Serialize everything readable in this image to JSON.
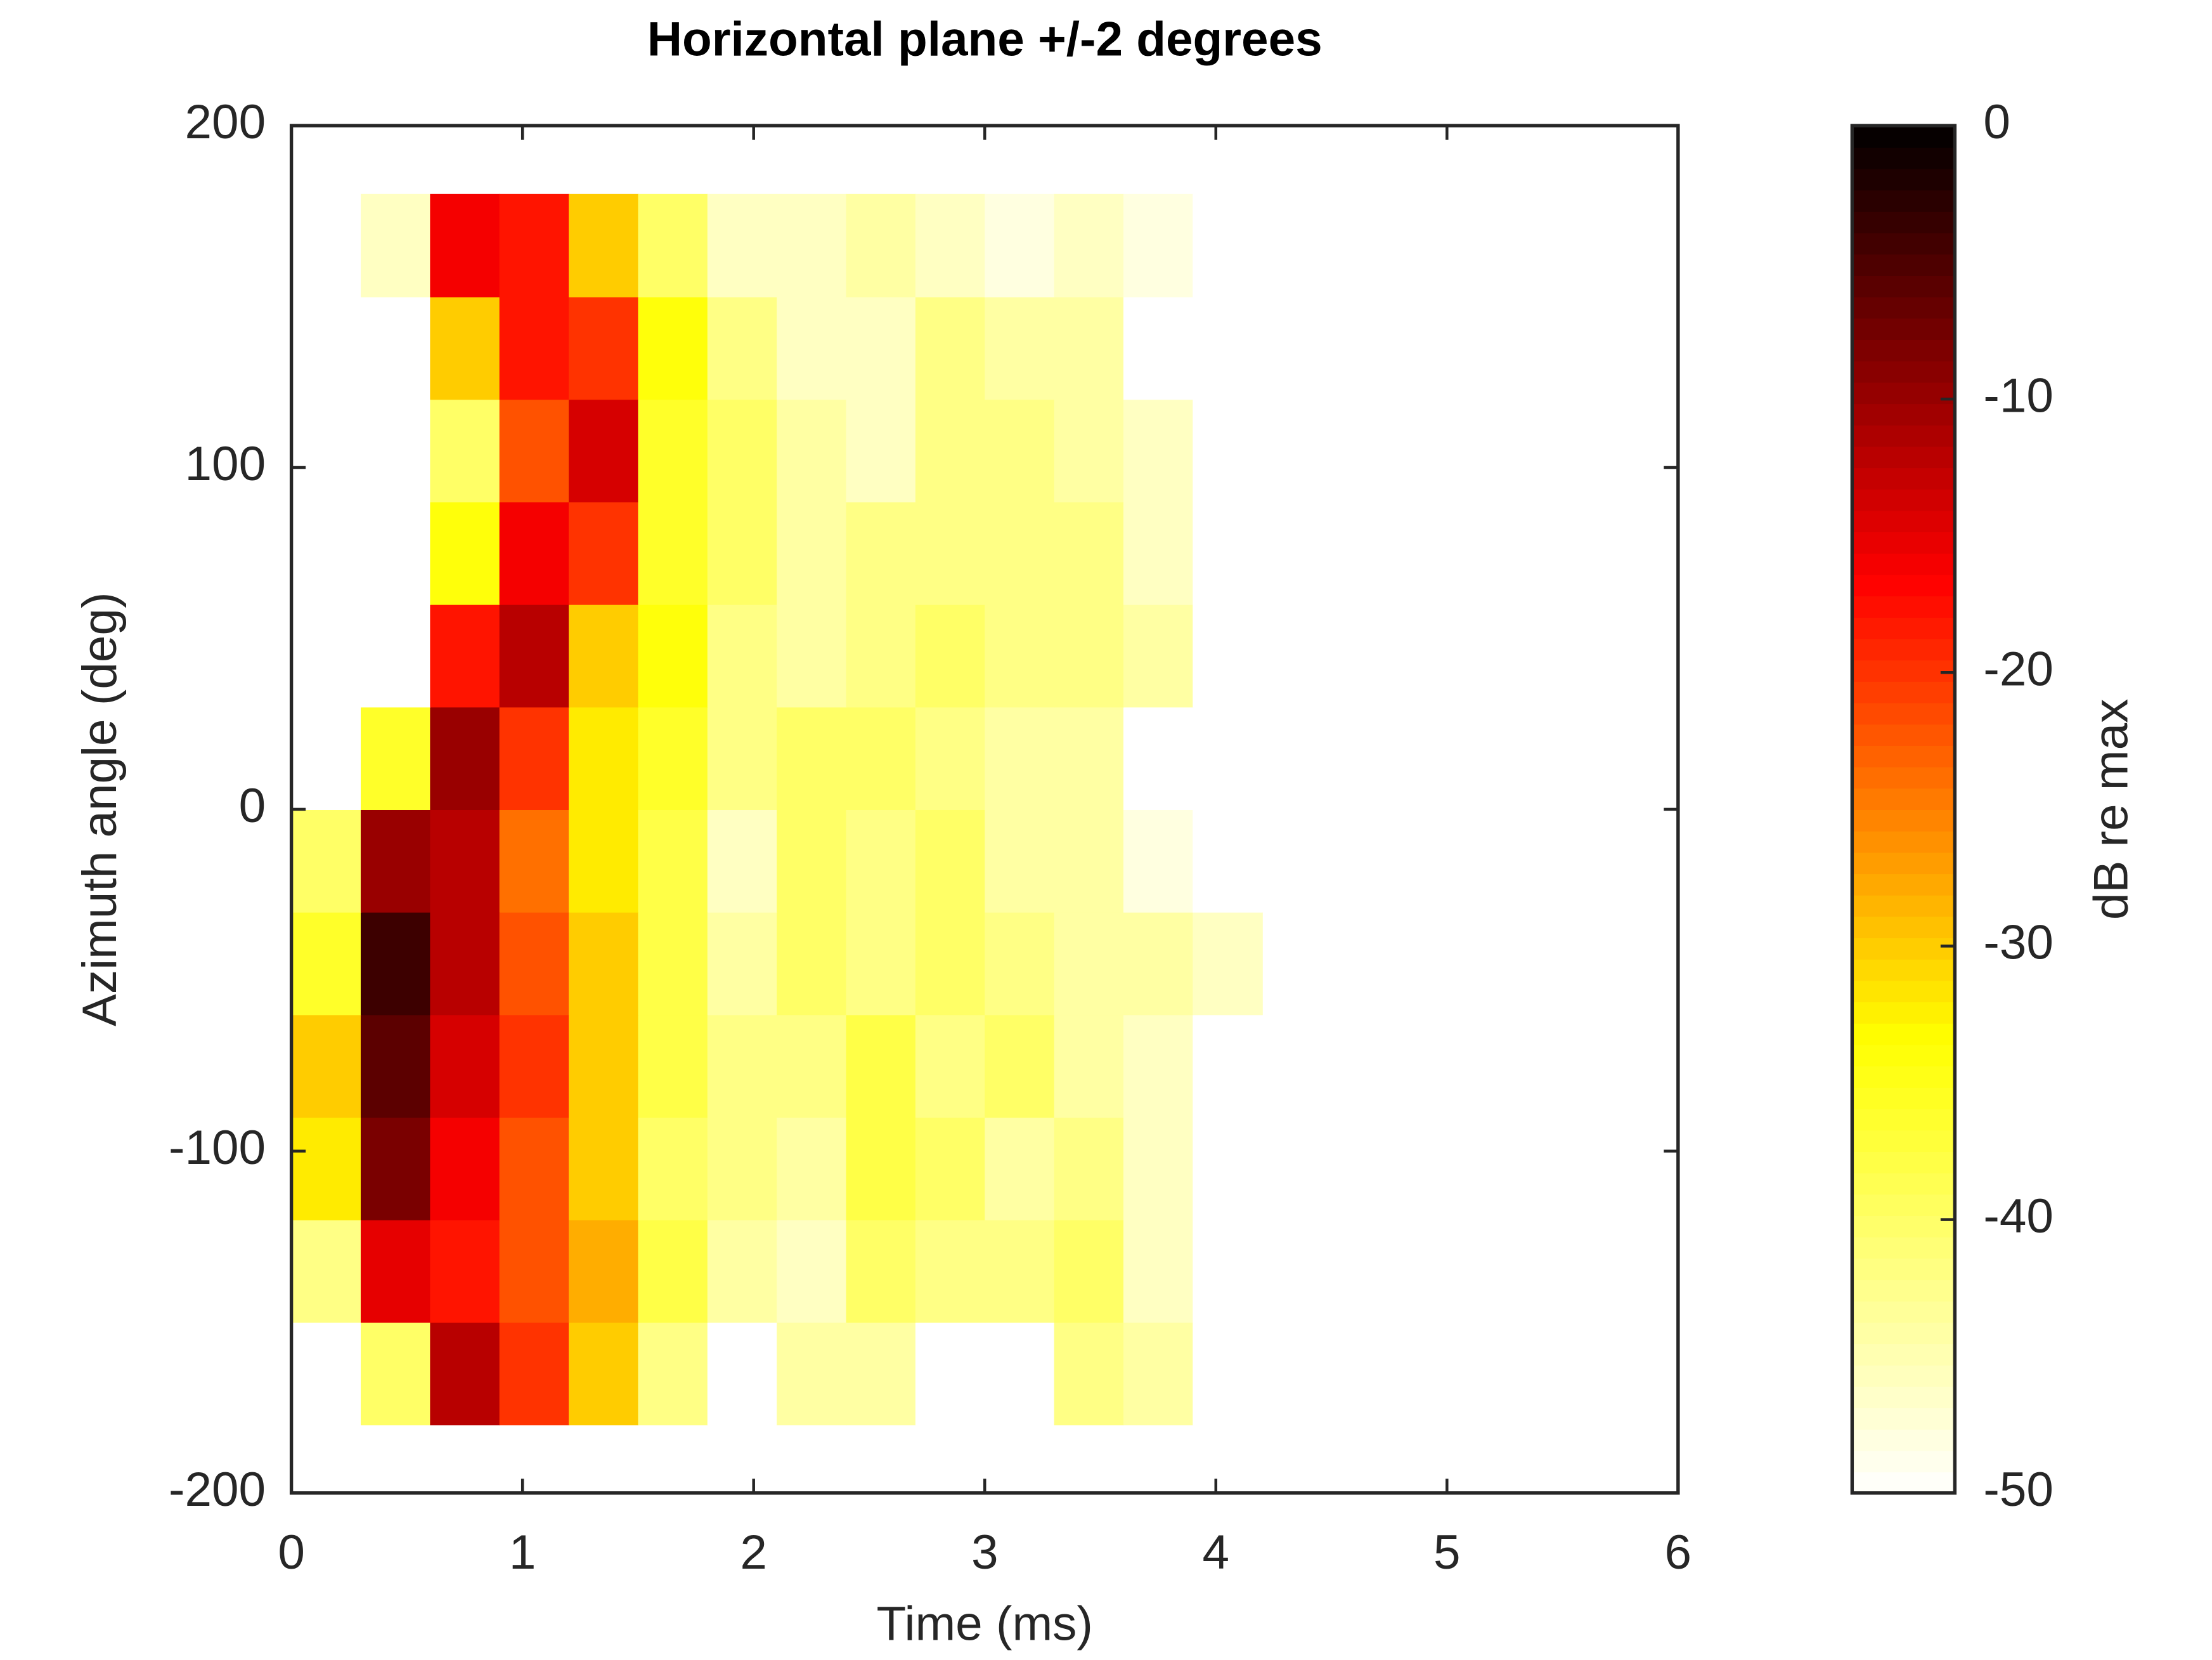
{
  "chart_data": {
    "type": "heatmap",
    "title": "Horizontal plane +/-2 degrees",
    "x_label": "Time (ms)",
    "y_label": "Azimuth angle (deg)",
    "x": [
      0.15,
      0.45,
      0.75,
      1.05,
      1.35,
      1.65,
      1.95,
      2.25,
      2.55,
      2.85,
      3.15,
      3.45,
      3.75,
      4.05
    ],
    "y": [
      -165,
      -135,
      -105,
      -75,
      -45,
      -15,
      15,
      45,
      75,
      105,
      135,
      165
    ],
    "z": [
      [
        -50,
        -40,
        -12,
        -20,
        -30,
        -42,
        -50,
        -44,
        -44,
        -50,
        -50,
        -42,
        -44,
        -50
      ],
      [
        -42,
        -15,
        -18,
        -22,
        -28,
        -38,
        -44,
        -46,
        -40,
        -42,
        -42,
        -40,
        -46,
        -50
      ],
      [
        -32,
        -8,
        -16,
        -22,
        -30,
        -40,
        -42,
        -44,
        -38,
        -40,
        -44,
        -42,
        -46,
        -50
      ],
      [
        -30,
        -6,
        -14,
        -20,
        -30,
        -38,
        -42,
        -42,
        -38,
        -42,
        -40,
        -44,
        -46,
        -50
      ],
      [
        -36,
        -4,
        -12,
        -22,
        -30,
        -38,
        -44,
        -40,
        -42,
        -40,
        -42,
        -44,
        -44,
        -46
      ],
      [
        -40,
        -10,
        -12,
        -24,
        -32,
        -38,
        -46,
        -40,
        -42,
        -40,
        -44,
        -44,
        -48,
        -50
      ],
      [
        -50,
        -36,
        -10,
        -20,
        -32,
        -36,
        -42,
        -40,
        -40,
        -42,
        -44,
        -44,
        -50,
        -50
      ],
      [
        -50,
        -50,
        -18,
        -12,
        -30,
        -34,
        -42,
        -44,
        -42,
        -40,
        -42,
        -42,
        -44,
        -50
      ],
      [
        -50,
        -50,
        -34,
        -16,
        -20,
        -36,
        -40,
        -44,
        -42,
        -42,
        -42,
        -42,
        -46,
        -50
      ],
      [
        -50,
        -50,
        -40,
        -22,
        -14,
        -36,
        -40,
        -44,
        -46,
        -42,
        -42,
        -44,
        -46,
        -50
      ],
      [
        -50,
        -50,
        -30,
        -18,
        -20,
        -34,
        -42,
        -46,
        -46,
        -42,
        -44,
        -44,
        -50,
        -50
      ],
      [
        -50,
        -46,
        -16,
        -18,
        -30,
        -40,
        -46,
        -46,
        -44,
        -46,
        -48,
        -46,
        -48,
        -50
      ]
    ],
    "xlim": [
      0,
      6
    ],
    "ylim": [
      -200,
      200
    ],
    "xticks": [
      0,
      1,
      2,
      3,
      4,
      5,
      6
    ],
    "yticks": [
      -200,
      -100,
      0,
      100,
      200
    ],
    "colormap": "hot-reversed",
    "clim": [
      -50,
      0
    ],
    "cticks": [
      -50,
      -40,
      -30,
      -20,
      -10,
      0
    ],
    "colorbar_label": "dB re max"
  }
}
